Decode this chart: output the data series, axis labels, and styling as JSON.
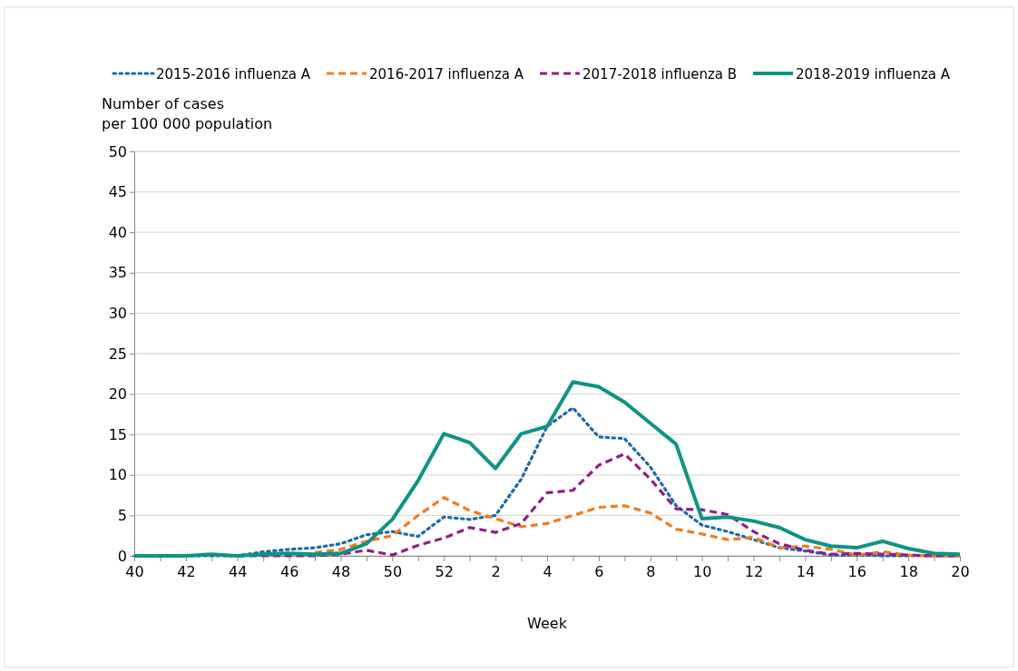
{
  "chart_data": {
    "type": "line",
    "ylabel": "Number of cases\nper 100 000 population",
    "xlabel": "Week",
    "categories": [
      "40",
      null,
      "42",
      null,
      "44",
      null,
      "46",
      null,
      "48",
      null,
      "50",
      null,
      "52",
      null,
      "2",
      null,
      "4",
      null,
      "6",
      null,
      "8",
      null,
      "10",
      null,
      "12",
      null,
      "14",
      null,
      "16",
      null,
      "18",
      null,
      "20"
    ],
    "ylim": [
      0,
      50
    ],
    "yticks": [
      0,
      5,
      10,
      15,
      20,
      25,
      30,
      35,
      40,
      45,
      50
    ],
    "grid": "y",
    "legend": "top",
    "series": [
      {
        "name": "2015-2016 influenza A",
        "color": "#1a6aab",
        "line_style": "dotted",
        "values": [
          0,
          0,
          0,
          0,
          0,
          0.5,
          0.8,
          1,
          1.5,
          2.6,
          3,
          2.4,
          4.8,
          4.5,
          5,
          9.5,
          16,
          18.3,
          14.7,
          14.5,
          11,
          6.2,
          3.8,
          3,
          2,
          1,
          0.6,
          0.1,
          0.1,
          0,
          0,
          0,
          0
        ]
      },
      {
        "name": "2016-2017 influenza A",
        "color": "#f47920",
        "line_style": "dashed",
        "values": [
          null,
          null,
          null,
          null,
          null,
          null,
          null,
          0.4,
          0.8,
          1.8,
          2.5,
          5,
          7.2,
          5.6,
          4.6,
          3.6,
          4,
          5,
          6,
          6.2,
          5.3,
          3.3,
          2.7,
          2,
          2.3,
          1,
          1.2,
          0.8,
          0.1,
          0.5,
          0.1,
          0,
          0
        ]
      },
      {
        "name": "2017-2018 influenza B",
        "color": "#8e1f84",
        "line_style": "dashed",
        "values": [
          null,
          null,
          null,
          null,
          0,
          0,
          0,
          0,
          0.2,
          0.7,
          0.1,
          1.3,
          2.2,
          3.5,
          2.9,
          4,
          7.8,
          8.1,
          11.2,
          12.6,
          9.5,
          5.8,
          5.7,
          5.1,
          3,
          1.5,
          0.7,
          0.2,
          0.3,
          0.2,
          0.1,
          0,
          0
        ]
      },
      {
        "name": "2018-2019 influenza A",
        "color": "#0e9384",
        "line_style": "solid",
        "values": [
          0,
          0,
          0,
          0.2,
          0,
          0.2,
          0.3,
          0.2,
          0.3,
          1.5,
          4.5,
          9.3,
          15.1,
          14,
          10.8,
          15.1,
          16,
          21.5,
          20.9,
          19,
          16.4,
          13.8,
          4.6,
          4.8,
          4.3,
          3.5,
          2,
          1.2,
          1,
          1.8,
          0.9,
          0.3,
          0.2
        ]
      }
    ]
  }
}
